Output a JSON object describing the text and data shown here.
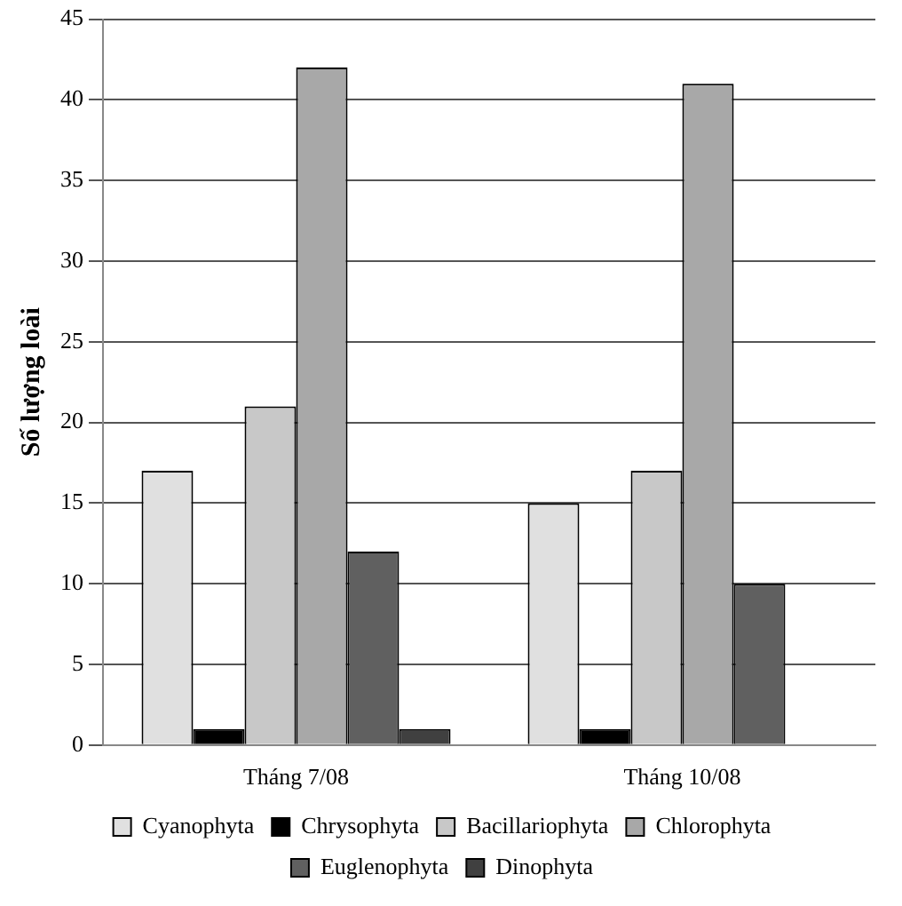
{
  "chart_data": {
    "type": "bar",
    "ylabel": "Số lượng loài",
    "categories": [
      "Tháng 7/08",
      "Tháng 10/08"
    ],
    "series": [
      {
        "name": "Cyanophyta",
        "color": "#e0e0e0",
        "values": [
          17,
          15
        ]
      },
      {
        "name": "Chrysophyta",
        "color": "#000000",
        "values": [
          1,
          1
        ]
      },
      {
        "name": "Bacillariophyta",
        "color": "#c8c8c8",
        "values": [
          21,
          17
        ]
      },
      {
        "name": "Chlorophyta",
        "color": "#a8a8a8",
        "values": [
          42,
          41
        ]
      },
      {
        "name": "Euglenophyta",
        "color": "#606060",
        "values": [
          12,
          10
        ]
      },
      {
        "name": "Dinophyta",
        "color": "#404040",
        "values": [
          1,
          0
        ]
      }
    ],
    "ylim": [
      0,
      45
    ],
    "yticks": [
      0,
      5,
      10,
      15,
      20,
      25,
      30,
      35,
      40,
      45
    ],
    "grid": "y",
    "legend": "bottom"
  }
}
